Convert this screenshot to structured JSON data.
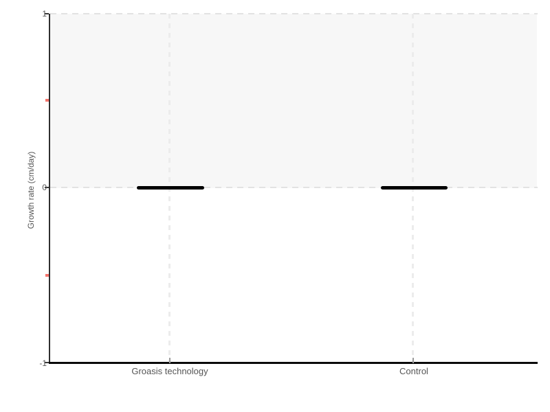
{
  "chart_data": {
    "type": "box",
    "categories": [
      "Groasis technology",
      "Control"
    ],
    "series": [
      {
        "name": "median",
        "values": [
          0,
          0
        ]
      }
    ],
    "values": [
      0,
      0
    ],
    "title": "",
    "xlabel": "",
    "ylabel": "Growth rate (cm/day)",
    "ylim": [
      -1,
      1
    ],
    "yticks_major": [
      1,
      0,
      -1
    ],
    "yticks_minor": [
      0.5,
      -0.5
    ],
    "grid": "dashed vertical lines at each category; dashed horizontal lines at y=0 and y=1",
    "legend": "none",
    "shaded_band": {
      "from_y": 0,
      "to_y": 1,
      "color": "#f7f7f7"
    },
    "marker_style": "thick black horizontal line at category position"
  },
  "axes": {
    "y_title": "Growth rate (cm/day)",
    "y_tick_labels": [
      "1",
      "0",
      "-1"
    ],
    "x_tick_labels": [
      "Groasis technology",
      "Control"
    ]
  },
  "colors": {
    "background": "#ffffff",
    "band": "#f7f7f7",
    "dashed_line": "#e2e2e2",
    "vertical_grid": "#ececec",
    "y_axis": "#2e2e2e",
    "x_axis": "#0a0a0a",
    "tick_label": "#555555",
    "minor_tick": "#f4736b",
    "data_line": "#000000"
  }
}
